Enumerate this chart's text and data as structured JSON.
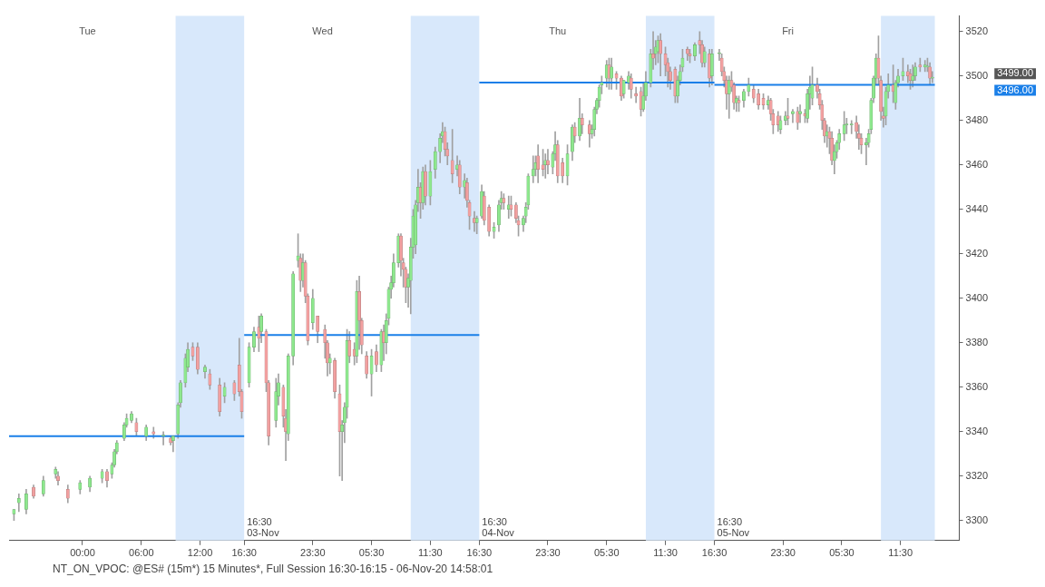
{
  "chart_data": {
    "type": "candlestick",
    "x": [
      "--11-02T17:00",
      "--11-02T17:30",
      "--11-02T18:15",
      "--11-02T19:00",
      "--11-02T20:00",
      "--11-02T21:15",
      "--11-02T21:30",
      "--11-02T22:30",
      "--11-02T23:45",
      "--11-03T00:45",
      "--11-03T02:00",
      "--11-03T02:30",
      "--11-03T03:00",
      "--11-03T03:15",
      "--11-03T03:30",
      "--11-03T04:15",
      "--11-03T04:30",
      "--11-03T05:00",
      "--11-03T05:30",
      "--11-03T06:30",
      "--11-03T07:15",
      "--11-03T08:15",
      "--11-03T09:00",
      "--11-03T09:15",
      "--11-03T09:45",
      "--11-03T10:00",
      "--11-03T10:30",
      "--11-03T10:45",
      "--11-03T11:15",
      "--11-03T11:45",
      "--11-03T12:30",
      "--11-03T13:00",
      "--11-03T14:00",
      "--11-03T14:30",
      "--11-03T15:30",
      "--11-03T16:00",
      "--11-03T16:15",
      "--11-03T17:00",
      "--11-03T17:30",
      "--11-03T18:00",
      "--11-03T18:15",
      "--11-03T18:45",
      "--11-03T19:00",
      "--11-03T19:45",
      "--11-03T20:00",
      "--11-03T20:30",
      "--11-03T20:45",
      "--11-03T21:00",
      "--11-03T21:30",
      "--11-03T22:00",
      "--11-03T22:15",
      "--11-03T22:30",
      "--11-03T22:45",
      "--11-03T23:00",
      "--11-03T23:30",
      "--11-04T00:00",
      "--11-04T00:45",
      "--11-04T01:00",
      "--11-04T01:15",
      "--11-04T01:45",
      "--11-04T02:15",
      "--11-04T02:30",
      "--11-04T02:45",
      "--11-04T03:00",
      "--11-04T03:15",
      "--11-04T03:45",
      "--11-04T04:00",
      "--11-04T04:15",
      "--11-04T04:30",
      "--11-04T05:00",
      "--11-04T05:30",
      "--11-04T06:00",
      "--11-04T06:30",
      "--11-04T06:45",
      "--11-04T07:00",
      "--11-04T07:15",
      "--11-04T07:30",
      "--11-04T07:45",
      "--11-04T08:15",
      "--11-04T08:30",
      "--11-04T08:45",
      "--11-04T09:00",
      "--11-04T09:15",
      "--11-04T09:30",
      "--11-04T09:45",
      "--11-04T10:00",
      "--11-04T10:15",
      "--11-04T10:30",
      "--11-04T10:45",
      "--11-04T11:00",
      "--11-04T11:30",
      "--11-04T12:00",
      "--11-04T12:30",
      "--11-04T12:45",
      "--11-04T13:00",
      "--11-04T13:15",
      "--11-04T13:45",
      "--11-04T14:15",
      "--11-04T14:30",
      "--11-04T15:00",
      "--11-04T15:15",
      "--11-04T15:30",
      "--11-04T16:00",
      "--11-04T16:15",
      "--11-04T16:45",
      "--11-04T17:00",
      "--11-04T17:30",
      "--11-04T18:00",
      "--11-04T18:30",
      "--11-04T18:45",
      "--11-04T19:00",
      "--11-04T19:30",
      "--11-04T19:45",
      "--11-04T20:15",
      "--11-04T20:30",
      "--11-04T21:00",
      "--11-04T21:15",
      "--11-04T21:30",
      "--11-04T22:00",
      "--11-04T22:15",
      "--11-04T22:30",
      "--11-04T23:00",
      "--11-04T23:15",
      "--11-04T23:30",
      "--11-05T00:00",
      "--11-05T00:15",
      "--11-05T00:30",
      "--11-05T01:00",
      "--11-05T01:30",
      "--11-05T02:00",
      "--11-05T02:15",
      "--11-05T02:45",
      "--11-05T03:00",
      "--11-05T03:45",
      "--11-05T04:00",
      "--11-05T04:15",
      "--11-05T04:30",
      "--11-05T04:45",
      "--11-05T05:00",
      "--11-05T05:30",
      "--11-05T05:45",
      "--11-05T06:00",
      "--11-05T06:30",
      "--11-05T07:00",
      "--11-05T07:15",
      "--11-05T07:45",
      "--11-05T08:00",
      "--11-05T08:30",
      "--11-05T09:00",
      "--11-05T09:15",
      "--11-05T09:30",
      "--11-05T10:00",
      "--11-05T10:15",
      "--11-05T10:30",
      "--11-05T10:45",
      "--11-05T11:00",
      "--11-05T11:30",
      "--11-05T11:45",
      "--11-05T12:00",
      "--11-05T12:30",
      "--11-05T12:45",
      "--11-05T13:00",
      "--11-05T13:15",
      "--11-05T13:45",
      "--11-05T14:00",
      "--11-05T14:30",
      "--11-05T15:00",
      "--11-05T15:15",
      "--11-05T15:30",
      "--11-05T16:00",
      "--11-05T16:15",
      "--11-05T17:00",
      "--11-05T17:15",
      "--11-05T17:30",
      "--11-05T17:45",
      "--11-05T18:00",
      "--11-05T18:15",
      "--11-05T18:30",
      "--11-05T18:45",
      "--11-05T19:00",
      "--11-05T19:30",
      "--11-05T20:00",
      "--11-05T20:30",
      "--11-05T21:00",
      "--11-05T21:30",
      "--11-05T22:00",
      "--11-05T22:15",
      "--11-05T22:30",
      "--11-05T23:00",
      "--11-05T23:15",
      "--11-05T23:45",
      "--11-06T00:00",
      "--11-06T00:30",
      "--11-06T01:00",
      "--11-06T01:15",
      "--11-06T01:45",
      "--11-06T02:00",
      "--11-06T02:15",
      "--11-06T02:30",
      "--11-06T03:00",
      "--11-06T03:15",
      "--11-06T03:30",
      "--11-06T03:45",
      "--11-06T04:00",
      "--11-06T04:15",
      "--11-06T04:30",
      "--11-06T04:45",
      "--11-06T05:00",
      "--11-06T05:15",
      "--11-06T05:45",
      "--11-06T06:00",
      "--11-06T06:30",
      "--11-06T07:00",
      "--11-06T07:15",
      "--11-06T07:30",
      "--11-06T08:00",
      "--11-06T08:15",
      "--11-06T08:30",
      "--11-06T08:45",
      "--11-06T09:00",
      "--11-06T09:15",
      "--11-06T09:30",
      "--11-06T09:45",
      "--11-06T10:00",
      "--11-06T10:15",
      "--11-06T10:45",
      "--11-06T11:00",
      "--11-06T11:15",
      "--11-06T11:45",
      "--11-06T12:15",
      "--11-06T12:30",
      "--11-06T12:45",
      "--11-06T13:00",
      "--11-06T13:30",
      "--11-06T14:00",
      "--11-06T14:15",
      "--11-06T14:30",
      "--11-06T14:45"
    ],
    "ohlc": [
      [
        3303,
        3305,
        3300,
        3305
      ],
      [
        3308,
        3312,
        3304,
        3310
      ],
      [
        3305,
        3314,
        3303,
        3312
      ],
      [
        3315,
        3316,
        3310,
        3311
      ],
      [
        3312,
        3320,
        3311,
        3318
      ],
      [
        3321,
        3324,
        3319,
        3323
      ],
      [
        3320,
        3322,
        3316,
        3318
      ],
      [
        3314,
        3316,
        3308,
        3310
      ],
      [
        3314,
        3318,
        3312,
        3317
      ],
      [
        3315,
        3320,
        3313,
        3319
      ],
      [
        3319,
        3323,
        3317,
        3322
      ],
      [
        3322,
        3323,
        3315,
        3318
      ],
      [
        3321,
        3326,
        3319,
        3325
      ],
      [
        3325,
        3332,
        3324,
        3331
      ],
      [
        3331,
        3336,
        3330,
        3335
      ],
      [
        3337,
        3344,
        3336,
        3343
      ],
      [
        3343,
        3348,
        3342,
        3346
      ],
      [
        3345,
        3349,
        3344,
        3348
      ],
      [
        3344,
        3346,
        3338,
        3340
      ],
      [
        3338,
        3343,
        3336,
        3342
      ],
      [
        3340,
        3342,
        3337,
        3339
      ],
      [
        3338,
        3340,
        3334,
        3338
      ],
      [
        3337,
        3338,
        3334,
        3335
      ],
      [
        3336,
        3338,
        3331,
        3338
      ],
      [
        3339,
        3353,
        3337,
        3352
      ],
      [
        3353,
        3363,
        3351,
        3362
      ],
      [
        3362,
        3375,
        3360,
        3373
      ],
      [
        3369,
        3380,
        3367,
        3377
      ],
      [
        3378,
        3380,
        3372,
        3374
      ],
      [
        3378,
        3380,
        3366,
        3368
      ],
      [
        3367,
        3370,
        3364,
        3369
      ],
      [
        3366,
        3368,
        3359,
        3361
      ],
      [
        3361,
        3364,
        3347,
        3349
      ],
      [
        3356,
        3362,
        3353,
        3360
      ],
      [
        3362,
        3363,
        3354,
        3357
      ],
      [
        3370,
        3382,
        3356,
        3358
      ],
      [
        3358,
        3359,
        3346,
        3349
      ],
      [
        3362,
        3380,
        3360,
        3378
      ],
      [
        3378,
        3387,
        3376,
        3385
      ],
      [
        3387,
        3392,
        3376,
        3382
      ],
      [
        3385,
        3393,
        3380,
        3392
      ],
      [
        3385,
        3386,
        3358,
        3362
      ],
      [
        3362,
        3363,
        3334,
        3338
      ],
      [
        3345,
        3364,
        3342,
        3358
      ],
      [
        3356,
        3366,
        3352,
        3362
      ],
      [
        3360,
        3361,
        3342,
        3347
      ],
      [
        3346,
        3350,
        3327,
        3340
      ],
      [
        3339,
        3375,
        3336,
        3374
      ],
      [
        3374,
        3412,
        3370,
        3411
      ],
      [
        3417,
        3429,
        3414,
        3419
      ],
      [
        3418,
        3420,
        3403,
        3408
      ],
      [
        3408,
        3420,
        3405,
        3416
      ],
      [
        3416,
        3417,
        3398,
        3401
      ],
      [
        3401,
        3402,
        3379,
        3381
      ],
      [
        3389,
        3404,
        3386,
        3400
      ],
      [
        3392,
        3392,
        3380,
        3385
      ],
      [
        3386,
        3388,
        3373,
        3380
      ],
      [
        3380,
        3381,
        3365,
        3371
      ],
      [
        3371,
        3375,
        3366,
        3373
      ],
      [
        3372,
        3373,
        3355,
        3358
      ],
      [
        3357,
        3361,
        3320,
        3340
      ],
      [
        3340,
        3345,
        3318,
        3343
      ],
      [
        3344,
        3353,
        3335,
        3351
      ],
      [
        3351,
        3386,
        3346,
        3381
      ],
      [
        3381,
        3385,
        3371,
        3374
      ],
      [
        3377,
        3380,
        3370,
        3374
      ],
      [
        3374,
        3408,
        3371,
        3403
      ],
      [
        3403,
        3410,
        3377,
        3390
      ],
      [
        3390,
        3391,
        3375,
        3379
      ],
      [
        3374,
        3376,
        3364,
        3366
      ],
      [
        3366,
        3377,
        3356,
        3374
      ],
      [
        3376,
        3379,
        3367,
        3370
      ],
      [
        3370,
        3386,
        3367,
        3385
      ],
      [
        3385,
        3388,
        3372,
        3380
      ],
      [
        3380,
        3393,
        3375,
        3390
      ],
      [
        3391,
        3405,
        3388,
        3404
      ],
      [
        3404,
        3410,
        3400,
        3407
      ],
      [
        3407,
        3420,
        3405,
        3416
      ],
      [
        3416,
        3429,
        3414,
        3428
      ],
      [
        3428,
        3429,
        3410,
        3417
      ],
      [
        3416,
        3418,
        3405,
        3413
      ],
      [
        3413,
        3414,
        3398,
        3405
      ],
      [
        3405,
        3411,
        3396,
        3409
      ],
      [
        3408,
        3427,
        3393,
        3423
      ],
      [
        3423,
        3440,
        3418,
        3437
      ],
      [
        3424,
        3444,
        3420,
        3442
      ],
      [
        3443,
        3458,
        3439,
        3450
      ],
      [
        3450,
        3452,
        3436,
        3443
      ],
      [
        3443,
        3459,
        3440,
        3457
      ],
      [
        3457,
        3460,
        3442,
        3446
      ],
      [
        3446,
        3462,
        3442,
        3457
      ],
      [
        3458,
        3468,
        3454,
        3466
      ],
      [
        3466,
        3474,
        3461,
        3472
      ],
      [
        3473,
        3479,
        3470,
        3475
      ],
      [
        3475,
        3477,
        3464,
        3467
      ],
      [
        3467,
        3470,
        3460,
        3464
      ],
      [
        3462,
        3476,
        3452,
        3456
      ],
      [
        3458,
        3464,
        3455,
        3460
      ],
      [
        3460,
        3462,
        3447,
        3450
      ],
      [
        3450,
        3456,
        3445,
        3453
      ],
      [
        3452,
        3454,
        3441,
        3444
      ],
      [
        3443,
        3444,
        3431,
        3437
      ],
      [
        3436,
        3439,
        3430,
        3434
      ],
      [
        3434,
        3437,
        3429,
        3436
      ],
      [
        3437,
        3451,
        3436,
        3448
      ],
      [
        3446,
        3448,
        3433,
        3435
      ],
      [
        3441,
        3442,
        3428,
        3430
      ],
      [
        3430,
        3434,
        3427,
        3432
      ],
      [
        3433,
        3444,
        3430,
        3442
      ],
      [
        3443,
        3448,
        3440,
        3445
      ],
      [
        3445,
        3447,
        3440,
        3443
      ],
      [
        3440,
        3446,
        3436,
        3442
      ],
      [
        3442,
        3446,
        3437,
        3440
      ],
      [
        3442,
        3443,
        3434,
        3436
      ],
      [
        3435,
        3437,
        3428,
        3433
      ],
      [
        3433,
        3437,
        3430,
        3436
      ],
      [
        3437,
        3443,
        3434,
        3441
      ],
      [
        3442,
        3456,
        3440,
        3455
      ],
      [
        3455,
        3464,
        3452,
        3458
      ],
      [
        3458,
        3464,
        3455,
        3461
      ],
      [
        3464,
        3469,
        3452,
        3458
      ],
      [
        3460,
        3467,
        3455,
        3458
      ],
      [
        3460,
        3465,
        3454,
        3462
      ],
      [
        3462,
        3467,
        3456,
        3460
      ],
      [
        3459,
        3466,
        3456,
        3465
      ],
      [
        3465,
        3475,
        3462,
        3469
      ],
      [
        3469,
        3471,
        3452,
        3455
      ],
      [
        3461,
        3463,
        3452,
        3455
      ],
      [
        3455,
        3469,
        3451,
        3465
      ],
      [
        3466,
        3478,
        3462,
        3477
      ],
      [
        3477,
        3479,
        3470,
        3473
      ],
      [
        3473,
        3490,
        3471,
        3481
      ],
      [
        3481,
        3483,
        3474,
        3478
      ],
      [
        3478,
        3480,
        3468,
        3474
      ],
      [
        3474,
        3478,
        3472,
        3476
      ],
      [
        3476,
        3486,
        3473,
        3485
      ],
      [
        3485,
        3490,
        3483,
        3489
      ],
      [
        3489,
        3496,
        3486,
        3495
      ],
      [
        3496,
        3500,
        3492,
        3497
      ],
      [
        3499,
        3507,
        3495,
        3505
      ],
      [
        3505,
        3508,
        3494,
        3499
      ],
      [
        3499,
        3508,
        3494,
        3504
      ],
      [
        3501,
        3502,
        3494,
        3499
      ],
      [
        3499,
        3500,
        3489,
        3491
      ],
      [
        3492,
        3498,
        3490,
        3498
      ],
      [
        3497,
        3502,
        3494,
        3500
      ],
      [
        3499,
        3501,
        3490,
        3494
      ],
      [
        3492,
        3495,
        3488,
        3491
      ],
      [
        3493,
        3495,
        3482,
        3485
      ],
      [
        3485,
        3497,
        3484,
        3491
      ],
      [
        3491,
        3502,
        3489,
        3497
      ],
      [
        3497,
        3512,
        3495,
        3510
      ],
      [
        3510,
        3520,
        3503,
        3508
      ],
      [
        3510,
        3516,
        3505,
        3513
      ],
      [
        3511,
        3518,
        3506,
        3516
      ],
      [
        3516,
        3519,
        3500,
        3510
      ],
      [
        3510,
        3513,
        3500,
        3505
      ],
      [
        3506,
        3508,
        3495,
        3502
      ],
      [
        3502,
        3504,
        3494,
        3498
      ],
      [
        3503,
        3504,
        3488,
        3491
      ],
      [
        3491,
        3500,
        3488,
        3498
      ],
      [
        3498,
        3505,
        3496,
        3502
      ],
      [
        3504,
        3512,
        3502,
        3508
      ],
      [
        3512,
        3513,
        3507,
        3510
      ],
      [
        3510,
        3512,
        3506,
        3509
      ],
      [
        3509,
        3515,
        3507,
        3514
      ],
      [
        3516,
        3520,
        3510,
        3514
      ],
      [
        3514,
        3516,
        3504,
        3506
      ],
      [
        3506,
        3513,
        3504,
        3511
      ],
      [
        3510,
        3512,
        3495,
        3499
      ],
      [
        3500,
        3512,
        3496,
        3510
      ],
      [
        3510,
        3512,
        3507,
        3510
      ],
      [
        3508,
        3510,
        3500,
        3502
      ],
      [
        3502,
        3504,
        3495,
        3498
      ],
      [
        3498,
        3500,
        3485,
        3492
      ],
      [
        3492,
        3500,
        3481,
        3498
      ],
      [
        3498,
        3502,
        3493,
        3495
      ],
      [
        3496,
        3497,
        3485,
        3488
      ],
      [
        3488,
        3491,
        3484,
        3490
      ],
      [
        3489,
        3491,
        3484,
        3488
      ],
      [
        3489,
        3494,
        3486,
        3493
      ],
      [
        3493,
        3499,
        3491,
        3496
      ],
      [
        3494,
        3496,
        3488,
        3490
      ],
      [
        3492,
        3494,
        3485,
        3487
      ],
      [
        3490,
        3492,
        3485,
        3487
      ],
      [
        3487,
        3491,
        3485,
        3489
      ],
      [
        3489,
        3490,
        3480,
        3483
      ],
      [
        3483,
        3485,
        3474,
        3478
      ],
      [
        3482,
        3484,
        3475,
        3478
      ],
      [
        3476,
        3482,
        3474,
        3480
      ],
      [
        3480,
        3484,
        3478,
        3482
      ],
      [
        3482,
        3490,
        3478,
        3481
      ],
      [
        3483,
        3485,
        3479,
        3484
      ],
      [
        3484,
        3486,
        3476,
        3479
      ],
      [
        3483,
        3487,
        3479,
        3484
      ],
      [
        3483,
        3485,
        3479,
        3482
      ],
      [
        3481,
        3494,
        3479,
        3492
      ],
      [
        3492,
        3500,
        3485,
        3495
      ],
      [
        3490,
        3504,
        3487,
        3496
      ],
      [
        3496,
        3499,
        3490,
        3493
      ],
      [
        3492,
        3494,
        3485,
        3487
      ],
      [
        3487,
        3489,
        3476,
        3480
      ],
      [
        3480,
        3481,
        3470,
        3473
      ],
      [
        3473,
        3478,
        3468,
        3475
      ],
      [
        3475,
        3477,
        3465,
        3472
      ],
      [
        3472,
        3475,
        3460,
        3462
      ],
      [
        3462,
        3469,
        3456,
        3466
      ],
      [
        3466,
        3471,
        3463,
        3470
      ],
      [
        3470,
        3476,
        3467,
        3474
      ],
      [
        3474,
        3484,
        3471,
        3478
      ],
      [
        3478,
        3481,
        3474,
        3478
      ],
      [
        3478,
        3480,
        3474,
        3478
      ],
      [
        3479,
        3482,
        3472,
        3475
      ],
      [
        3474,
        3478,
        3467,
        3472
      ],
      [
        3472,
        3474,
        3465,
        3469
      ],
      [
        3469,
        3472,
        3460,
        3470
      ],
      [
        3470,
        3476,
        3468,
        3474
      ],
      [
        3476,
        3490,
        3474,
        3489
      ],
      [
        3490,
        3500,
        3488,
        3499
      ],
      [
        3499,
        3510,
        3496,
        3508
      ],
      [
        3508,
        3518,
        3496,
        3499
      ],
      [
        3498,
        3500,
        3480,
        3484
      ],
      [
        3482,
        3486,
        3477,
        3481
      ],
      [
        3482,
        3495,
        3478,
        3493
      ],
      [
        3493,
        3501,
        3490,
        3496
      ],
      [
        3496,
        3505,
        3488,
        3493
      ],
      [
        3488,
        3498,
        3485,
        3497
      ],
      [
        3497,
        3503,
        3495,
        3500
      ],
      [
        3500,
        3508,
        3498,
        3502
      ],
      [
        3502,
        3505,
        3497,
        3500
      ],
      [
        3501,
        3503,
        3494,
        3498
      ],
      [
        3498,
        3505,
        3495,
        3500
      ],
      [
        3500,
        3506,
        3498,
        3504
      ],
      [
        3505,
        3508,
        3502,
        3504
      ],
      [
        3504,
        3507,
        3502,
        3505
      ],
      [
        3504,
        3508,
        3502,
        3504
      ],
      [
        3504,
        3506,
        3496,
        3499
      ],
      [
        3499,
        3502,
        3497,
        3499
      ]
    ],
    "series": [
      {
        "type": "line",
        "x": [
          "--11-02T16:30",
          "--11-03T16:30"
        ],
        "values": [
          3338,
          3338
        ],
        "color": "#1a7fe8"
      },
      {
        "type": "line",
        "x": [
          "--11-03T16:30",
          "--11-04T16:30"
        ],
        "values": [
          3383.5,
          3383.5
        ],
        "color": "#1a7fe8"
      },
      {
        "type": "line",
        "x": [
          "--11-04T16:30",
          "--11-05T16:30"
        ],
        "values": [
          3497,
          3497
        ],
        "color": "#1a7fe8"
      },
      {
        "type": "line",
        "x": [
          "--11-05T16:30",
          "--11-06T15:00"
        ],
        "values": [
          3496,
          3496
        ],
        "color": "#1a7fe8"
      }
    ],
    "bands": [
      {
        "axis": "x",
        "from": "--11-03T09:30",
        "to": "--11-03T16:30",
        "color": "#d8e8fb"
      },
      {
        "axis": "x",
        "from": "--11-04T09:30",
        "to": "--11-04T16:30",
        "color": "#d8e8fb"
      },
      {
        "axis": "x",
        "from": "--11-05T09:30",
        "to": "--11-05T16:30",
        "color": "#d8e8fb"
      },
      {
        "axis": "x",
        "from": "--11-06T09:30",
        "to": "--11-06T15:00",
        "color": "#d8e8fb"
      }
    ],
    "xlim": [
      "--11-02T16:30",
      "--11-06T17:30"
    ],
    "xticks": [
      {
        "value": "--11-03T00:00",
        "label": "00:00"
      },
      {
        "value": "--11-03T06:00",
        "label": "06:00"
      },
      {
        "value": "--11-03T12:00",
        "label": "12:00"
      },
      {
        "value": "--11-03T16:30",
        "label": "16:30"
      },
      {
        "value": "--11-03T23:30",
        "label": "23:30"
      },
      {
        "value": "--11-04T05:30",
        "label": "05:30"
      },
      {
        "value": "--11-04T11:30",
        "label": "11:30"
      },
      {
        "value": "--11-04T16:30",
        "label": "16:30"
      },
      {
        "value": "--11-04T23:30",
        "label": "23:30"
      },
      {
        "value": "--11-05T05:30",
        "label": "05:30"
      },
      {
        "value": "--11-05T11:30",
        "label": "11:30"
      },
      {
        "value": "--11-05T16:30",
        "label": "16:30"
      },
      {
        "value": "--11-05T23:30",
        "label": "23:30"
      },
      {
        "value": "--11-06T05:30",
        "label": "05:30"
      },
      {
        "value": "--11-06T11:30",
        "label": "11:30"
      }
    ],
    "ylim": [
      3291,
      3527
    ],
    "yticks": [
      3300,
      3320,
      3340,
      3360,
      3380,
      3400,
      3420,
      3440,
      3460,
      3480,
      3500,
      3520
    ],
    "annotations": [
      "Tue",
      "Wed",
      "Thu",
      "Fri",
      "3499.00",
      "3496.00",
      {
        "text": "16:30 03-Nov",
        "x": "--11-03T16:30"
      },
      {
        "text": "16:30 04-Nov",
        "x": "--11-04T16:30"
      },
      {
        "text": "16:30 05-Nov",
        "x": "--11-05T16:30"
      },
      "NT_ON_VPOC: @ES# (15m*) 15 Minutes*, Full Session 16:30-16:15 - 06-Nov-20 14:58:01"
    ]
  }
}
